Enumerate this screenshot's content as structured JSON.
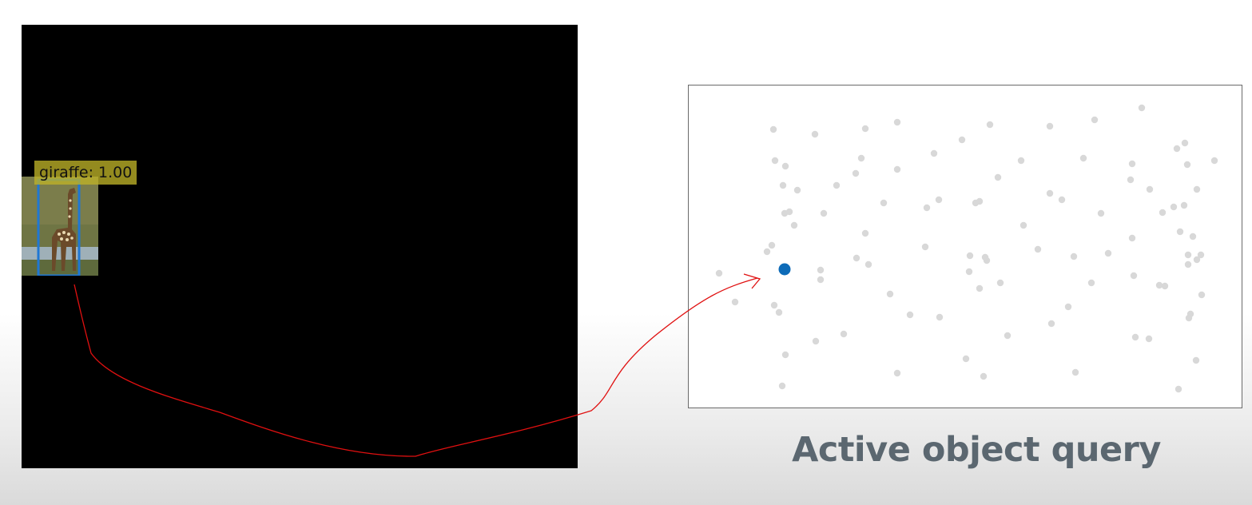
{
  "detection": {
    "label": "giraffe: 1.00",
    "box_color": "#1f77d4",
    "label_bg_color": "#beb228"
  },
  "query_panel": {
    "caption": "Active object query",
    "active_dot_color": "#0d6bb8",
    "inactive_dot_color": "#d8d8d8"
  },
  "annotation": {
    "arrow_color": "#e01010"
  }
}
